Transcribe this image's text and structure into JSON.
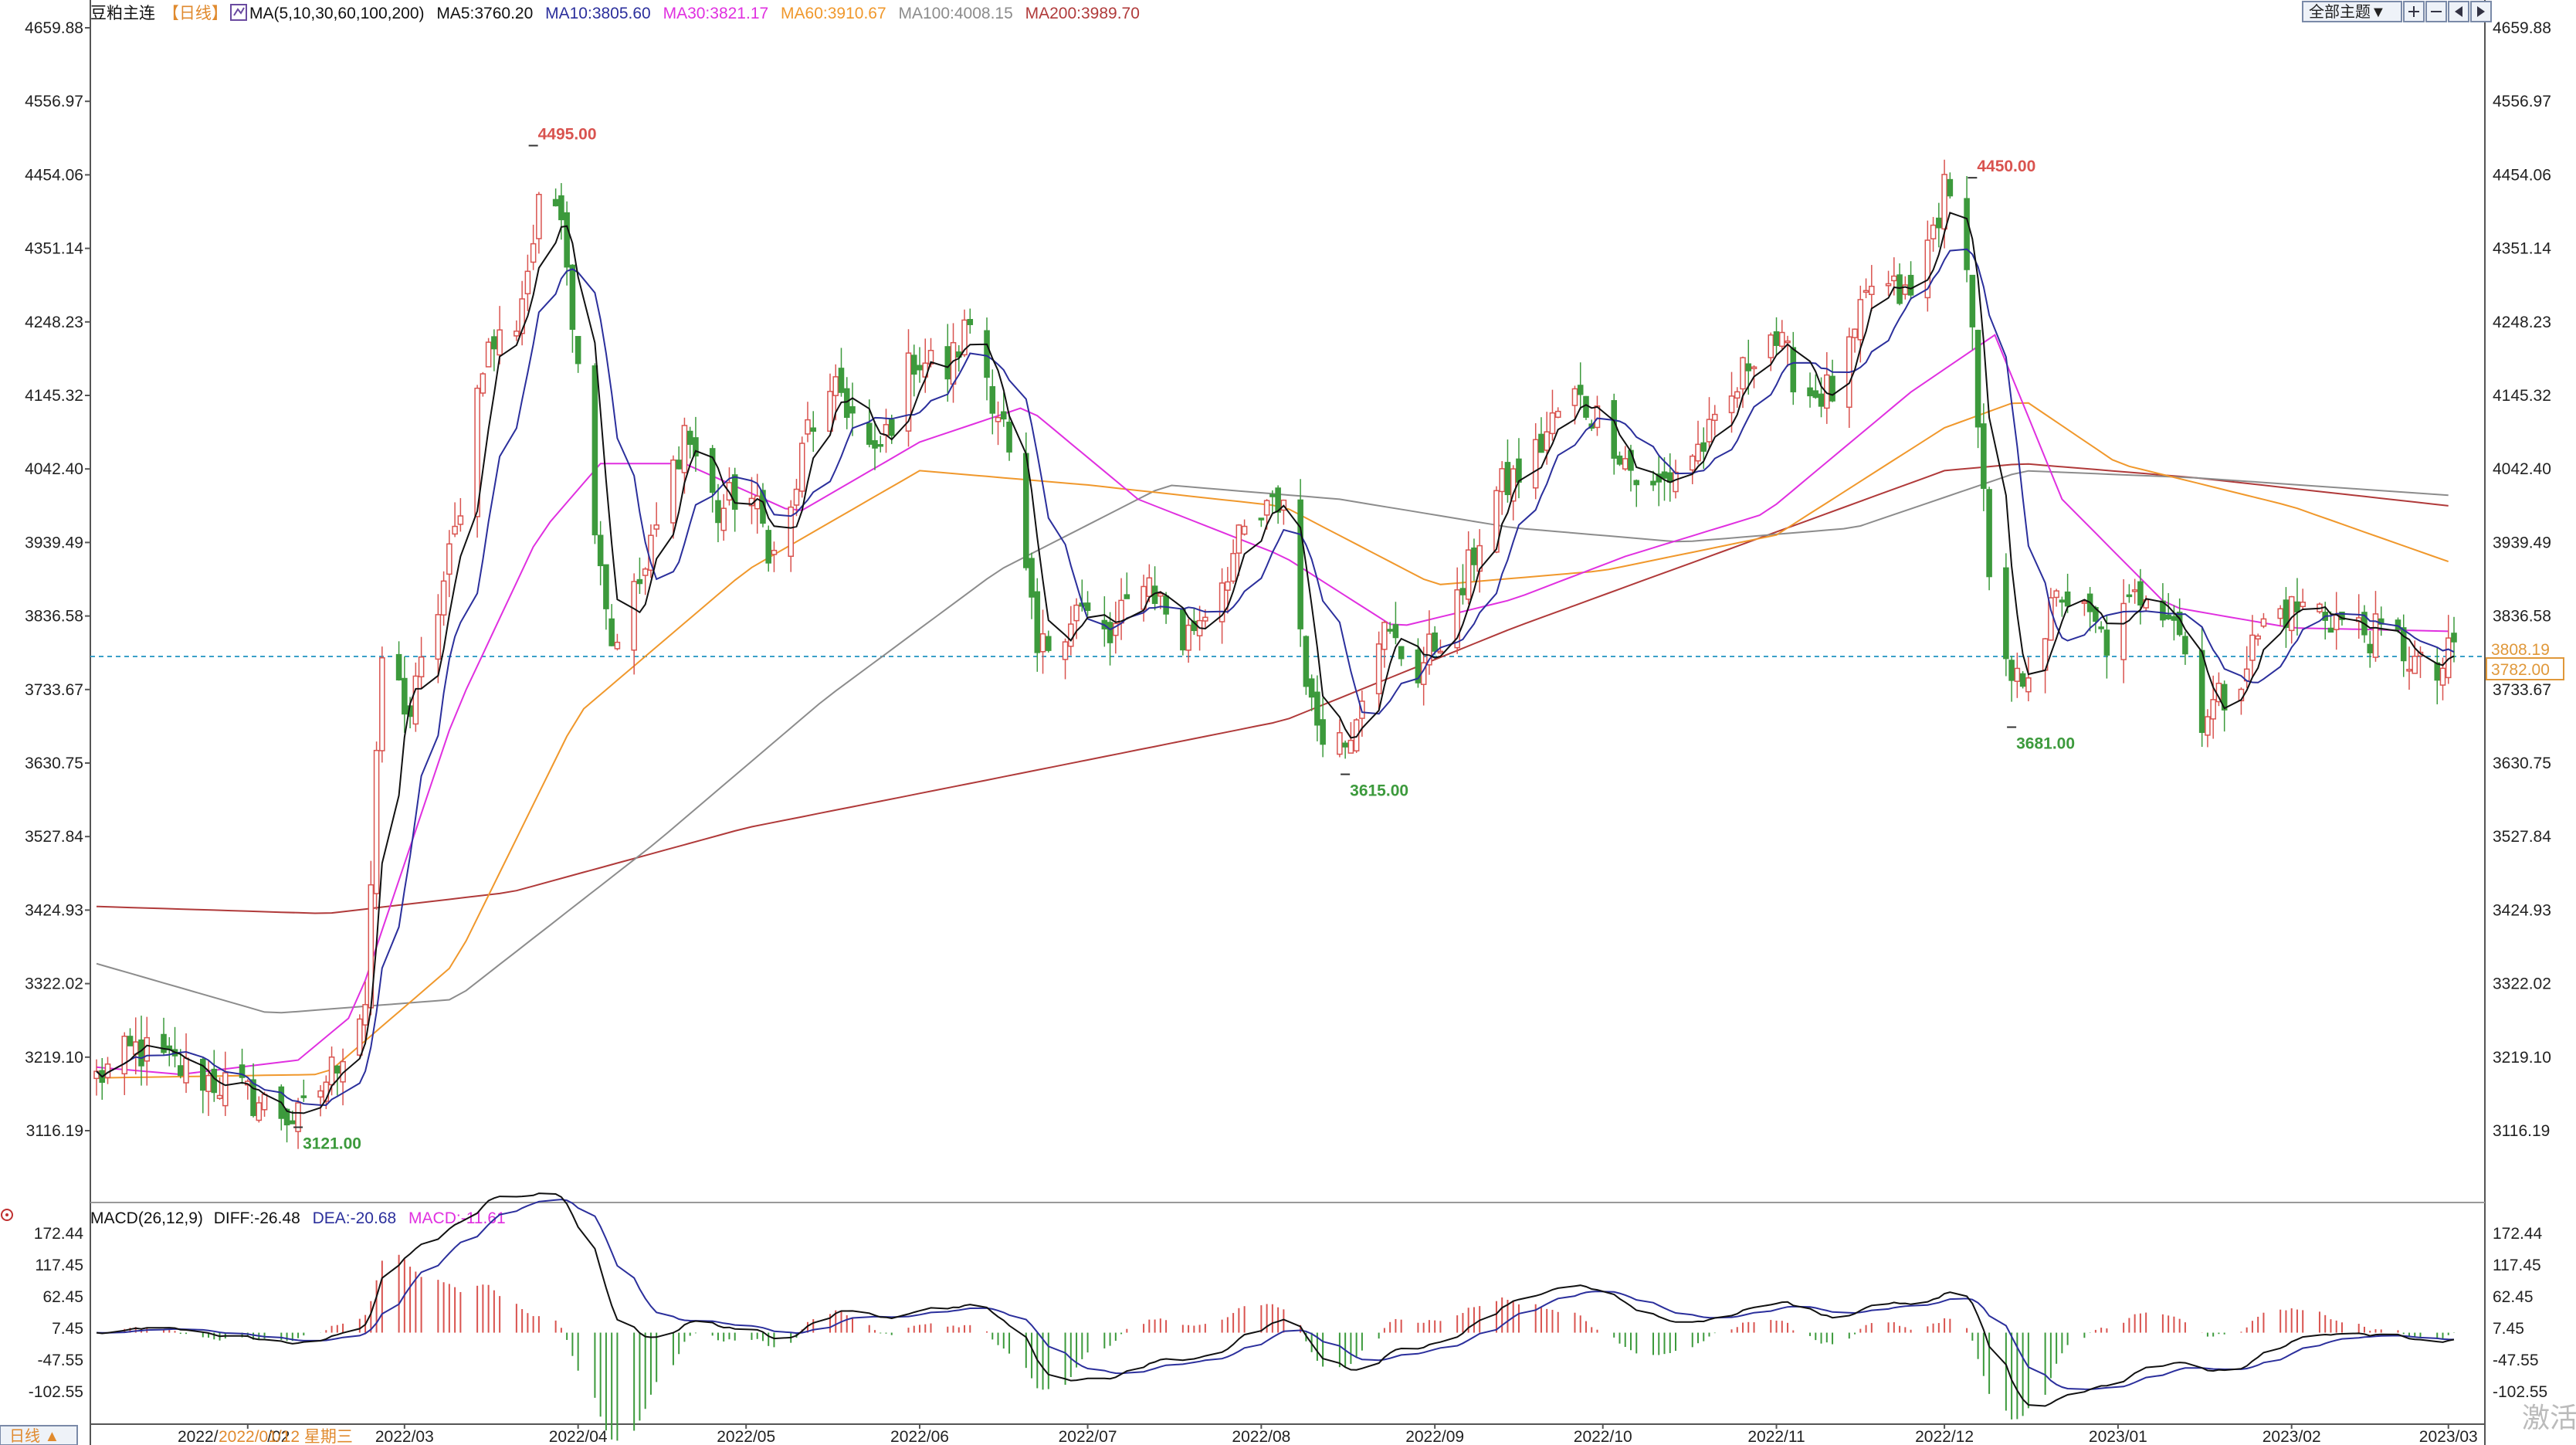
{
  "header": {
    "instrument": "豆粕主连",
    "period_tag": "【日线】",
    "ma_params": "MA(5,10,30,60,100,200)",
    "ma5": "MA5:3760.20",
    "ma10": "MA10:3805.60",
    "ma30": "MA30:3821.17",
    "ma60": "MA60:3910.67",
    "ma100": "MA100:4008.15",
    "ma200": "MA200:3989.70"
  },
  "toolbar": {
    "main_select": "全部主题▼"
  },
  "macd_header": {
    "params": "MACD(26,12,9)",
    "diff": "DIFF:-26.48",
    "dea": "DEA:-20.68",
    "macd": "MACD:-11.61"
  },
  "period_button": "日线 ▲",
  "cursor_date": "2022/01/12 星期三",
  "cursor_date_prefix": "2022/",
  "watermark": "激活",
  "price_axis_ticks": [
    "4659.88",
    "4556.97",
    "4454.06",
    "4351.14",
    "4248.23",
    "4145.32",
    "4042.40",
    "3939.49",
    "3836.58",
    "3733.67",
    "3630.75",
    "3527.84",
    "3424.93",
    "3322.02",
    "3219.10",
    "3116.19"
  ],
  "macd_axis_ticks": [
    "172.44",
    "117.45",
    "62.45",
    "7.45",
    "-47.55",
    "-102.55"
  ],
  "date_ticks": [
    "2022/02",
    "2022/03",
    "2022/04",
    "2022/05",
    "2022/06",
    "2022/07",
    "2022/08",
    "2022/09",
    "2022/10",
    "2022/11",
    "2022/12",
    "2023/01",
    "2023/02",
    "2023/03"
  ],
  "price_annotations": [
    {
      "text": "4495.00",
      "kind": "high"
    },
    {
      "text": "4450.00",
      "kind": "high"
    },
    {
      "text": "3615.00",
      "kind": "low"
    },
    {
      "text": "3681.00",
      "kind": "low"
    },
    {
      "text": "3121.00",
      "kind": "low"
    }
  ],
  "price_tags": {
    "upper": "3808.19",
    "lower": "3782.00"
  },
  "colors": {
    "up": "#d9534f",
    "down": "#3c9a3c",
    "ma5": "#111111",
    "ma10": "#2b2f9c",
    "ma30": "#e030e0",
    "ma60": "#f0982c",
    "ma100": "#8c8c8c",
    "ma200": "#b03a3a",
    "dashed": "#3aa0c8",
    "axis": "#000000"
  },
  "chart_data": {
    "type": "candlestick",
    "title": "豆粕主连 日线",
    "ylim": [
      3080,
      4670
    ],
    "macd_ylim": [
      -135,
      190
    ],
    "anchors": [
      [
        "2022-01-05",
        3190
      ],
      [
        "2022-01-12",
        3230
      ],
      [
        "2022-01-21",
        3200
      ],
      [
        "2022-01-28",
        3180
      ],
      [
        "2022-02-10",
        3130
      ],
      [
        "2022-02-16",
        3200
      ],
      [
        "2022-02-22",
        3300
      ],
      [
        "2022-02-25",
        3780
      ],
      [
        "2022-03-02",
        3700
      ],
      [
        "2022-03-07",
        3850
      ],
      [
        "2022-03-10",
        3950
      ],
      [
        "2022-03-15",
        4200
      ],
      [
        "2022-03-21",
        4250
      ],
      [
        "2022-03-25",
        4400
      ],
      [
        "2022-03-29",
        4420
      ],
      [
        "2022-04-02",
        4100
      ],
      [
        "2022-04-07",
        3800
      ],
      [
        "2022-04-13",
        3900
      ],
      [
        "2022-04-20",
        4100
      ],
      [
        "2022-04-26",
        3980
      ],
      [
        "2022-05-01",
        4020
      ],
      [
        "2022-05-07",
        3900
      ],
      [
        "2022-05-12",
        4100
      ],
      [
        "2022-05-18",
        4150
      ],
      [
        "2022-05-24",
        4050
      ],
      [
        "2022-05-31",
        4200
      ],
      [
        "2022-06-06",
        4180
      ],
      [
        "2022-06-10",
        4250
      ],
      [
        "2022-06-16",
        4100
      ],
      [
        "2022-06-22",
        3780
      ],
      [
        "2022-06-29",
        3850
      ],
      [
        "2022-07-05",
        3800
      ],
      [
        "2022-07-11",
        3900
      ],
      [
        "2022-07-18",
        3800
      ],
      [
        "2022-07-22",
        3850
      ],
      [
        "2022-07-29",
        3950
      ],
      [
        "2022-08-05",
        4000
      ],
      [
        "2022-08-10",
        3700
      ],
      [
        "2022-08-16",
        3660
      ],
      [
        "2022-08-22",
        3820
      ],
      [
        "2022-08-29",
        3760
      ],
      [
        "2022-09-05",
        3850
      ],
      [
        "2022-09-11",
        4000
      ],
      [
        "2022-09-18",
        4050
      ],
      [
        "2022-09-25",
        4150
      ],
      [
        "2022-10-02",
        4100
      ],
      [
        "2022-10-09",
        4000
      ],
      [
        "2022-10-15",
        4050
      ],
      [
        "2022-10-22",
        4100
      ],
      [
        "2022-10-30",
        4250
      ],
      [
        "2022-11-06",
        4150
      ],
      [
        "2022-11-12",
        4150
      ],
      [
        "2022-11-18",
        4300
      ],
      [
        "2022-11-25",
        4280
      ],
      [
        "2022-12-01",
        4430
      ],
      [
        "2022-12-05",
        4350
      ],
      [
        "2022-12-10",
        3760
      ],
      [
        "2022-12-14",
        3740
      ],
      [
        "2022-12-22",
        3870
      ],
      [
        "2022-12-30",
        3800
      ],
      [
        "2023-01-06",
        3880
      ],
      [
        "2023-01-11",
        3840
      ],
      [
        "2023-01-16",
        3700
      ],
      [
        "2023-01-21",
        3730
      ],
      [
        "2023-01-28",
        3840
      ],
      [
        "2023-02-05",
        3850
      ],
      [
        "2023-02-12",
        3820
      ],
      [
        "2023-02-20",
        3800
      ],
      [
        "2023-02-26",
        3740
      ],
      [
        "2023-03-02",
        3790
      ]
    ],
    "ma30_anchors": [
      [
        "2022-01-05",
        3205
      ],
      [
        "2022-01-20",
        3195
      ],
      [
        "2022-02-10",
        3215
      ],
      [
        "2022-02-20",
        3280
      ],
      [
        "2022-03-10",
        3700
      ],
      [
        "2022-03-25",
        3950
      ],
      [
        "2022-04-05",
        4050
      ],
      [
        "2022-04-20",
        4050
      ],
      [
        "2022-05-10",
        3980
      ],
      [
        "2022-06-01",
        4080
      ],
      [
        "2022-06-20",
        4130
      ],
      [
        "2022-07-10",
        4000
      ],
      [
        "2022-08-05",
        3920
      ],
      [
        "2022-08-25",
        3820
      ],
      [
        "2022-09-15",
        3860
      ],
      [
        "2022-10-05",
        3920
      ],
      [
        "2022-10-30",
        3980
      ],
      [
        "2022-11-25",
        4150
      ],
      [
        "2022-12-10",
        4230
      ],
      [
        "2022-12-22",
        4000
      ],
      [
        "2023-01-10",
        3850
      ],
      [
        "2023-02-01",
        3820
      ],
      [
        "2023-03-02",
        3815
      ]
    ],
    "ma60_anchors": [
      [
        "2022-01-05",
        3190
      ],
      [
        "2022-02-15",
        3195
      ],
      [
        "2022-03-10",
        3350
      ],
      [
        "2022-04-01",
        3700
      ],
      [
        "2022-05-01",
        3900
      ],
      [
        "2022-06-01",
        4040
      ],
      [
        "2022-07-01",
        4020
      ],
      [
        "2022-08-05",
        3990
      ],
      [
        "2022-09-01",
        3880
      ],
      [
        "2022-10-01",
        3900
      ],
      [
        "2022-11-01",
        3950
      ],
      [
        "2022-12-01",
        4100
      ],
      [
        "2022-12-15",
        4140
      ],
      [
        "2023-01-01",
        4050
      ],
      [
        "2023-02-01",
        3990
      ],
      [
        "2023-03-02",
        3910
      ]
    ],
    "ma100_anchors": [
      [
        "2022-01-05",
        3350
      ],
      [
        "2022-02-05",
        3280
      ],
      [
        "2022-03-10",
        3300
      ],
      [
        "2022-04-15",
        3520
      ],
      [
        "2022-05-15",
        3720
      ],
      [
        "2022-06-15",
        3900
      ],
      [
        "2022-07-15",
        4020
      ],
      [
        "2022-08-15",
        4000
      ],
      [
        "2022-09-15",
        3960
      ],
      [
        "2022-10-15",
        3940
      ],
      [
        "2022-11-15",
        3960
      ],
      [
        "2022-12-15",
        4040
      ],
      [
        "2023-01-15",
        4030
      ],
      [
        "2023-03-02",
        4005
      ]
    ],
    "ma200_anchors": [
      [
        "2022-01-05",
        3430
      ],
      [
        "2022-02-15",
        3420
      ],
      [
        "2022-03-20",
        3450
      ],
      [
        "2022-05-01",
        3540
      ],
      [
        "2022-06-15",
        3610
      ],
      [
        "2022-08-05",
        3690
      ],
      [
        "2022-09-15",
        3820
      ],
      [
        "2022-10-20",
        3920
      ],
      [
        "2022-12-01",
        4040
      ],
      [
        "2022-12-15",
        4050
      ],
      [
        "2023-01-15",
        4030
      ],
      [
        "2023-03-02",
        3990
      ]
    ],
    "highlights": [
      {
        "date": "2022-03-24",
        "price": 4495,
        "label": "4495.00",
        "kind": "high"
      },
      {
        "date": "2022-12-06",
        "price": 4450,
        "label": "4450.00",
        "kind": "high"
      },
      {
        "date": "2022-08-16",
        "price": 3615,
        "label": "3615.00",
        "kind": "low"
      },
      {
        "date": "2022-12-13",
        "price": 3681,
        "label": "3681.00",
        "kind": "low"
      },
      {
        "date": "2022-02-10",
        "price": 3121,
        "label": "3121.00",
        "kind": "low"
      }
    ],
    "reference_price": 3782,
    "series": [
      {
        "name": "MA5",
        "last": 3760.2
      },
      {
        "name": "MA10",
        "last": 3805.6
      },
      {
        "name": "MA30",
        "last": 3821.17
      },
      {
        "name": "MA60",
        "last": 3910.67
      },
      {
        "name": "MA100",
        "last": 4008.15
      },
      {
        "name": "MA200",
        "last": 3989.7
      }
    ],
    "macd": {
      "diff_last": -26.48,
      "dea_last": -20.68,
      "macd_last": -11.61
    }
  }
}
